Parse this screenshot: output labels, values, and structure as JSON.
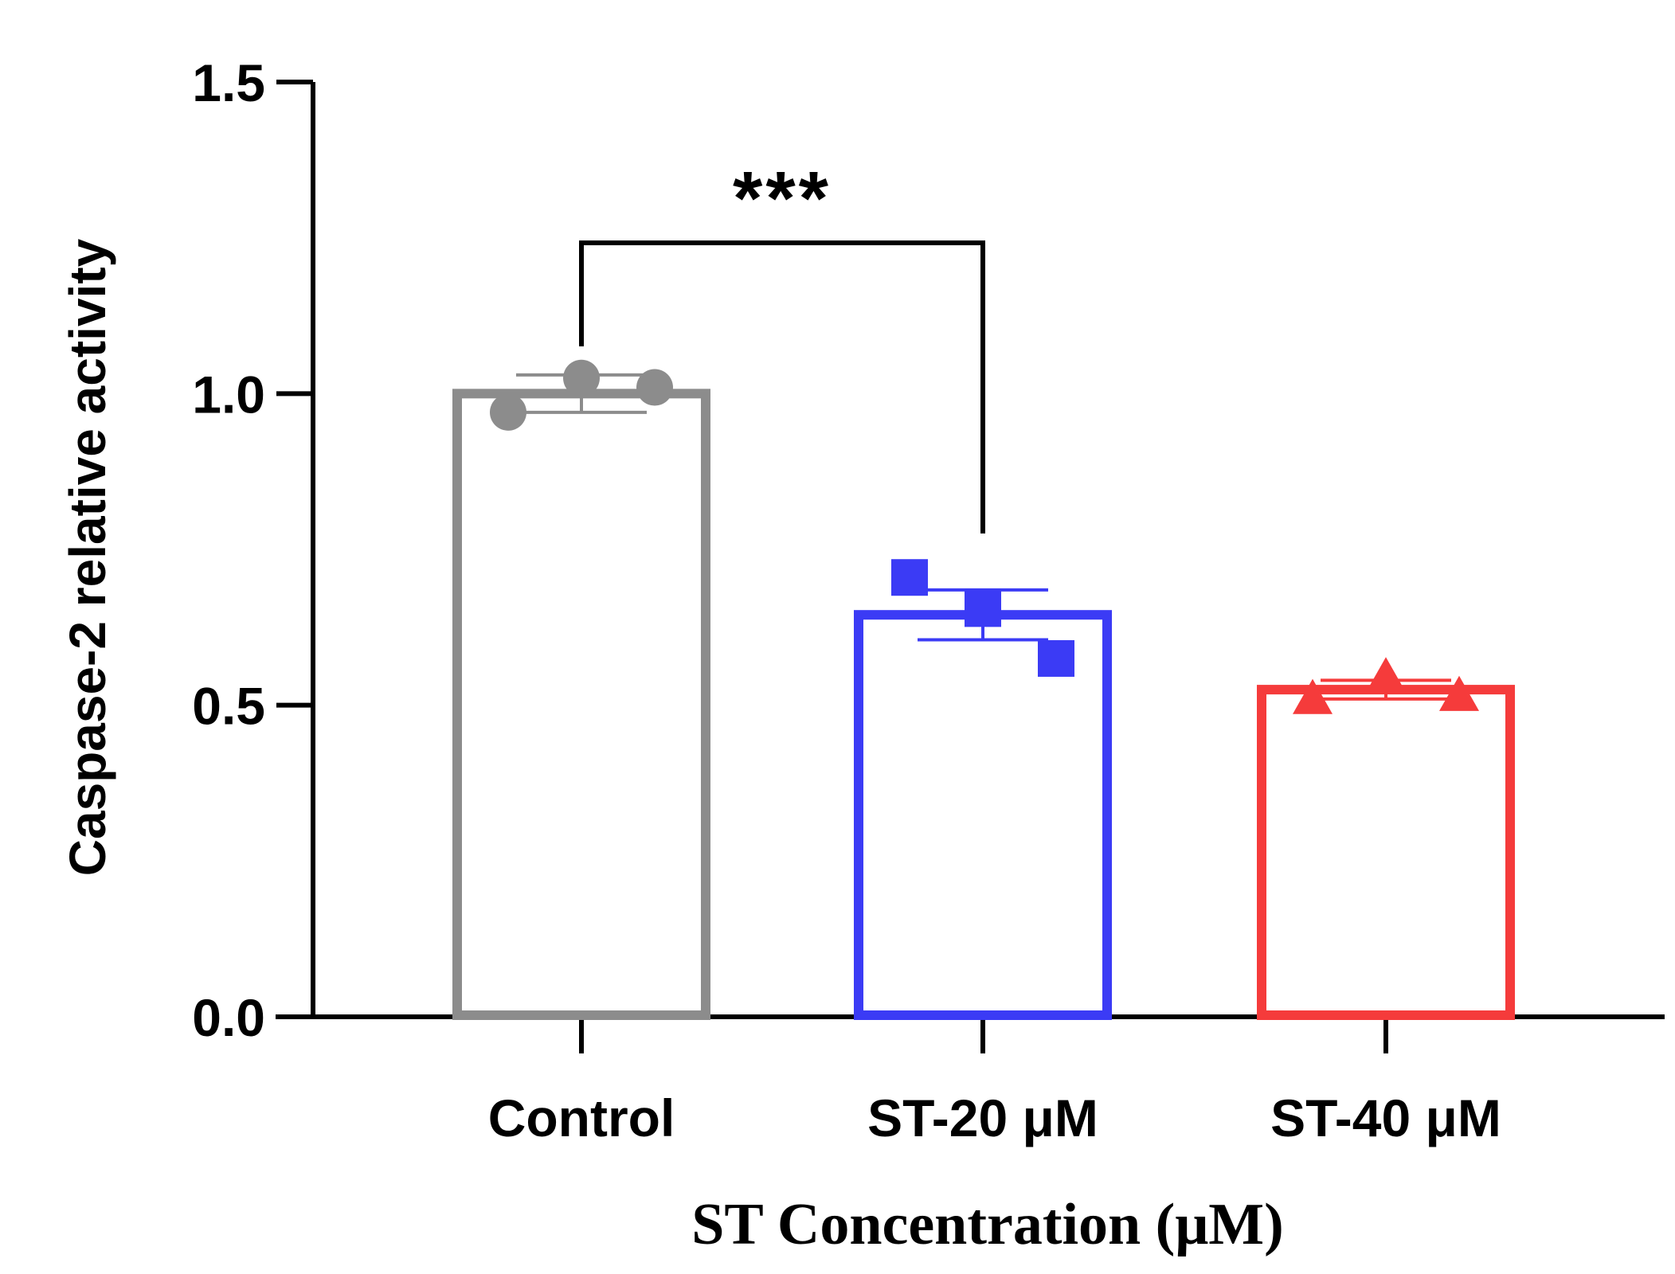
{
  "chart_data": {
    "type": "bar",
    "title": "",
    "xlabel": "ST Concentration (μM)",
    "ylabel": "Caspase-2 relative activity",
    "ylim": [
      0,
      1.5
    ],
    "yticks": [
      0.0,
      0.5,
      1.0,
      1.5
    ],
    "ytick_labels": [
      "0.0",
      "0.5",
      "1.0",
      "1.5"
    ],
    "categories": [
      "Control",
      "ST-20 μM",
      "ST-40 μM"
    ],
    "values": [
      1.0,
      0.645,
      0.525
    ],
    "error": [
      0.03,
      0.04,
      0.015
    ],
    "colors": [
      "#8c8c8c",
      "#3b3bf5",
      "#f53b3b"
    ],
    "marker_shapes": [
      "circle",
      "square",
      "triangle"
    ],
    "points": [
      [
        0.97,
        1.025,
        1.01
      ],
      [
        0.705,
        0.655,
        0.575
      ],
      [
        0.51,
        0.545,
        0.515
      ]
    ],
    "significance": [
      {
        "from": "Control",
        "to": "ST-20 μM",
        "label": "***"
      }
    ]
  }
}
